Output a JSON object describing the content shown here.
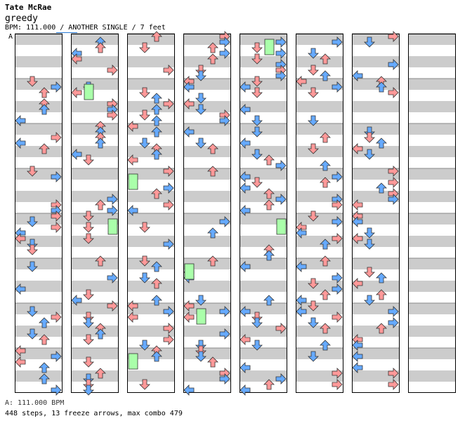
{
  "artist": "Tate McRae",
  "title": "greedy",
  "meta": "BPM: 111.000 / ANOTHER SINGLE / 7 feet",
  "bpm_marker": "A",
  "footer": {
    "bpm_line": "A: 111.000 BPM",
    "stats": "448 steps, 13 freeze arrows, max combo 479"
  },
  "colors": {
    "measure_stripe": "#cccccc",
    "arrow_blue": "#66aaff",
    "arrow_red": "#ff9999",
    "freeze_green": "#aaffaa",
    "border": "#000000"
  },
  "chart_layout": {
    "columns": 8,
    "measures_per_column": 8,
    "lanes": [
      "left",
      "down",
      "up",
      "right"
    ]
  }
}
